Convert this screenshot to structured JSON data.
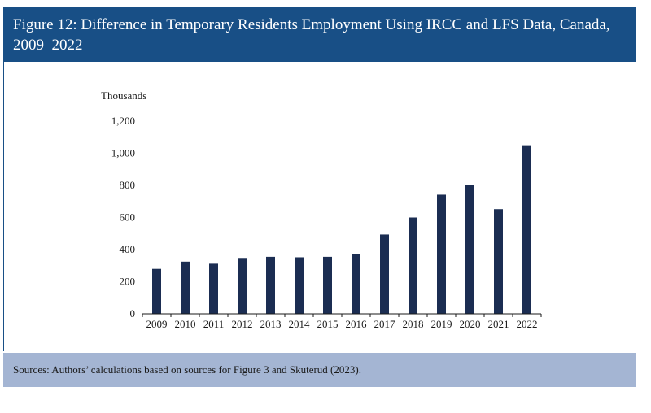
{
  "figure": {
    "title": "Figure 12: Difference in Temporary Residents Employment Using IRCC and LFS Data, Canada, 2009–2022",
    "sources": "Sources: Authors’ calculations based on sources for Figure 3 and Skuterud (2023)."
  },
  "colors": {
    "title_bar": "#184f86",
    "sources_bar": "#a4b5d3",
    "bar": "#1b2d52"
  },
  "chart_data": {
    "type": "bar",
    "title": "",
    "xlabel": "",
    "ylabel": "Thousands",
    "categories": [
      "2009",
      "2010",
      "2011",
      "2012",
      "2013",
      "2014",
      "2015",
      "2016",
      "2017",
      "2018",
      "2019",
      "2020",
      "2021",
      "2022"
    ],
    "values": [
      280,
      325,
      312,
      348,
      355,
      352,
      355,
      373,
      494,
      600,
      742,
      800,
      652,
      1050
    ],
    "ylim": [
      0,
      1200
    ],
    "yticks": [
      "0",
      "200",
      "400",
      "600",
      "800",
      "1,000",
      "1,200"
    ],
    "grid": false,
    "legend": "none"
  }
}
